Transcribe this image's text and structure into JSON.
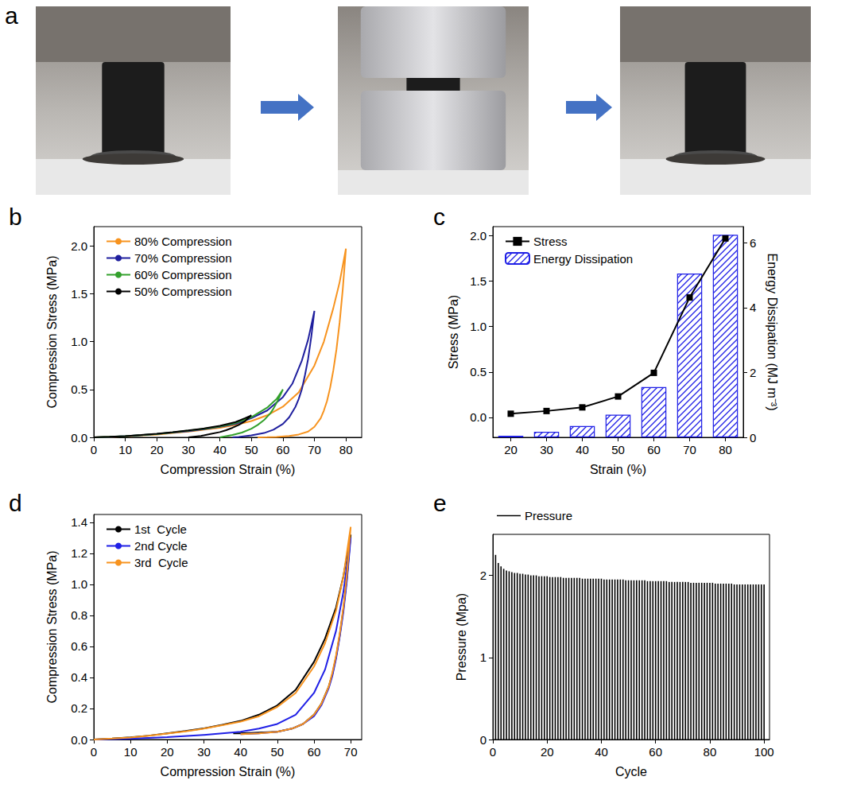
{
  "photo_panel": {
    "title": "a"
  },
  "chart_data": [
    {
      "type": "line",
      "title": "b",
      "xlabel": "Compression Strain (%)",
      "ylabel": "Compression Stress (MPa)",
      "xlim": [
        0,
        85
      ],
      "xticks": [
        0,
        10,
        20,
        30,
        40,
        50,
        60,
        70,
        80
      ],
      "ylim": [
        0,
        2.2
      ],
      "yticks": [
        {
          "value": 0,
          "label": "0.0"
        },
        {
          "value": 0.5,
          "label": "0.5"
        },
        {
          "value": 1,
          "label": "1.0"
        },
        {
          "value": 1.5,
          "label": "1.5"
        },
        {
          "value": 2,
          "label": "2.0"
        }
      ],
      "legend": "upper left",
      "grid": false,
      "series": [
        {
          "name": "80% Compression",
          "color": "#f7931e",
          "marker": "none",
          "x": [
            0,
            5,
            10,
            15,
            20,
            25,
            30,
            35,
            40,
            45,
            50,
            55,
            60,
            65,
            70,
            73,
            76,
            78,
            80,
            79,
            78,
            77,
            76,
            75,
            74,
            73,
            72,
            70,
            68,
            65,
            62,
            58,
            55,
            52
          ],
          "values": [
            0,
            0.005,
            0.01,
            0.02,
            0.03,
            0.045,
            0.06,
            0.08,
            0.1,
            0.13,
            0.17,
            0.23,
            0.32,
            0.47,
            0.75,
            1.0,
            1.35,
            1.62,
            1.97,
            1.55,
            1.2,
            0.92,
            0.7,
            0.52,
            0.38,
            0.28,
            0.2,
            0.11,
            0.06,
            0.03,
            0.015,
            0.005,
            0.002,
            0
          ]
        },
        {
          "name": "70% Compression",
          "color": "#1f1f9e",
          "marker": "none",
          "x": [
            0,
            5,
            10,
            15,
            20,
            25,
            30,
            35,
            40,
            45,
            50,
            55,
            60,
            63,
            66,
            68,
            70,
            69,
            68,
            67,
            66,
            65,
            64,
            62,
            60,
            57,
            54,
            50,
            46,
            44
          ],
          "values": [
            0,
            0.005,
            0.012,
            0.022,
            0.035,
            0.05,
            0.065,
            0.085,
            0.11,
            0.14,
            0.2,
            0.28,
            0.42,
            0.56,
            0.8,
            1.02,
            1.32,
            1.05,
            0.82,
            0.65,
            0.5,
            0.4,
            0.32,
            0.21,
            0.14,
            0.08,
            0.045,
            0.02,
            0.005,
            0
          ]
        },
        {
          "name": "60% Compression",
          "color": "#33a02c",
          "marker": "none",
          "x": [
            0,
            5,
            10,
            15,
            20,
            25,
            30,
            35,
            40,
            45,
            50,
            55,
            58,
            60,
            59,
            58,
            57,
            56,
            54,
            52,
            50,
            47,
            44,
            40
          ],
          "values": [
            0,
            0.006,
            0.013,
            0.023,
            0.036,
            0.052,
            0.07,
            0.09,
            0.115,
            0.15,
            0.21,
            0.31,
            0.4,
            0.5,
            0.43,
            0.36,
            0.3,
            0.25,
            0.18,
            0.13,
            0.09,
            0.05,
            0.025,
            0
          ]
        },
        {
          "name": "50% Compression",
          "color": "#000000",
          "marker": "none",
          "x": [
            0,
            5,
            10,
            15,
            20,
            25,
            30,
            35,
            40,
            45,
            48,
            50,
            49,
            48,
            46,
            44,
            42,
            40,
            37,
            34,
            30
          ],
          "values": [
            0,
            0.006,
            0.013,
            0.024,
            0.037,
            0.054,
            0.072,
            0.093,
            0.12,
            0.16,
            0.2,
            0.23,
            0.2,
            0.17,
            0.13,
            0.1,
            0.075,
            0.055,
            0.035,
            0.015,
            0
          ]
        }
      ]
    },
    {
      "type": "bar",
      "title": "c",
      "xlabel": "Strain (%)",
      "ylabel": "Stress (MPa)",
      "y2label": "Energy Dissipation (MJ m⁻³)",
      "categories": [
        20,
        30,
        40,
        50,
        60,
        70,
        80
      ],
      "ylim": [
        -0.22,
        2.1
      ],
      "yticks": [
        {
          "value": 0,
          "label": "0.0"
        },
        {
          "value": 0.5,
          "label": "0.5"
        },
        {
          "value": 1,
          "label": "1.0"
        },
        {
          "value": 1.5,
          "label": "1.5"
        },
        {
          "value": 2,
          "label": "2.0"
        }
      ],
      "y2lim": [
        0,
        6.5
      ],
      "y2ticks": [
        0,
        2,
        4,
        6
      ],
      "legend": "upper left",
      "grid": false,
      "series": [
        {
          "name": "Stress",
          "type": "line",
          "color": "#000000",
          "marker": "square",
          "values": [
            0.04,
            0.07,
            0.11,
            0.23,
            0.49,
            1.32,
            1.97
          ]
        },
        {
          "name": "Energy Dissipation",
          "type": "bar",
          "color": "#1f1fe6",
          "axis": "y2",
          "values": [
            0.05,
            0.17,
            0.35,
            0.7,
            1.55,
            5.05,
            6.25
          ]
        }
      ]
    },
    {
      "type": "line",
      "title": "d",
      "xlabel": "Compression Strain (%)",
      "ylabel": "Compression Stress (MPa)",
      "xlim": [
        0,
        73
      ],
      "xticks": [
        0,
        10,
        20,
        30,
        40,
        50,
        60,
        70
      ],
      "ylim": [
        0,
        1.45
      ],
      "yticks": [
        {
          "value": 0,
          "label": "0.0"
        },
        {
          "value": 0.2,
          "label": "0.2"
        },
        {
          "value": 0.4,
          "label": "0.4"
        },
        {
          "value": 0.6,
          "label": "0.6"
        },
        {
          "value": 0.8,
          "label": "0.8"
        },
        {
          "value": 1,
          "label": "1.0"
        },
        {
          "value": 1.2,
          "label": "1.2"
        },
        {
          "value": 1.4,
          "label": "1.4"
        }
      ],
      "legend": "upper left",
      "grid": false,
      "series": [
        {
          "name": "1st  Cycle",
          "color": "#000000",
          "marker": "none",
          "x": [
            0,
            5,
            10,
            15,
            20,
            25,
            30,
            35,
            40,
            45,
            50,
            55,
            60,
            63,
            66,
            68,
            70,
            69,
            68,
            67,
            66,
            65,
            64,
            62,
            60,
            57,
            54,
            50,
            45,
            40,
            38
          ],
          "values": [
            0,
            0.006,
            0.014,
            0.025,
            0.04,
            0.055,
            0.072,
            0.095,
            0.12,
            0.16,
            0.22,
            0.32,
            0.5,
            0.65,
            0.85,
            1.05,
            1.32,
            1.05,
            0.84,
            0.67,
            0.53,
            0.42,
            0.34,
            0.23,
            0.16,
            0.1,
            0.07,
            0.05,
            0.045,
            0.04,
            0.04
          ]
        },
        {
          "name": "2nd Cycle",
          "color": "#1f1fe6",
          "marker": "none",
          "x": [
            0,
            10,
            20,
            30,
            40,
            45,
            50,
            55,
            60,
            63,
            66,
            68,
            70,
            69,
            68,
            67,
            66,
            65,
            64,
            62,
            60,
            57,
            54,
            50,
            45,
            40
          ],
          "values": [
            0,
            0.005,
            0.015,
            0.03,
            0.05,
            0.07,
            0.1,
            0.16,
            0.3,
            0.45,
            0.7,
            0.95,
            1.3,
            1.03,
            0.82,
            0.66,
            0.52,
            0.41,
            0.33,
            0.22,
            0.15,
            0.1,
            0.07,
            0.05,
            0.04,
            0.035
          ]
        },
        {
          "name": "3rd  Cycle",
          "color": "#f7931e",
          "marker": "none",
          "x": [
            0,
            5,
            10,
            15,
            20,
            25,
            30,
            35,
            40,
            45,
            50,
            55,
            60,
            63,
            66,
            68,
            70,
            69,
            68,
            67,
            66,
            65,
            64,
            62,
            60,
            57,
            54,
            50,
            45,
            40
          ],
          "values": [
            0,
            0.006,
            0.013,
            0.024,
            0.038,
            0.053,
            0.07,
            0.092,
            0.115,
            0.15,
            0.21,
            0.3,
            0.47,
            0.62,
            0.83,
            1.05,
            1.37,
            1.07,
            0.85,
            0.68,
            0.54,
            0.43,
            0.34,
            0.23,
            0.16,
            0.1,
            0.07,
            0.05,
            0.04,
            0.035
          ]
        }
      ]
    },
    {
      "type": "bar",
      "title": "e",
      "xlabel": "Cycle",
      "ylabel": "Pressure (Mpa)",
      "xlim": [
        0,
        102
      ],
      "xticks": [
        0,
        20,
        40,
        60,
        80,
        100
      ],
      "ylim": [
        0,
        2.5
      ],
      "yticks": [
        0,
        1,
        2
      ],
      "legend": "top",
      "grid": false,
      "series": [
        {
          "name": "Pressure",
          "color": "#000000",
          "x": [
            1,
            2,
            3,
            4,
            5,
            6,
            7,
            8,
            9,
            10,
            11,
            12,
            13,
            14,
            15,
            16,
            17,
            18,
            19,
            20,
            21,
            22,
            23,
            24,
            25,
            26,
            27,
            28,
            29,
            30,
            31,
            32,
            33,
            34,
            35,
            36,
            37,
            38,
            39,
            40,
            41,
            42,
            43,
            44,
            45,
            46,
            47,
            48,
            49,
            50,
            51,
            52,
            53,
            54,
            55,
            56,
            57,
            58,
            59,
            60,
            61,
            62,
            63,
            64,
            65,
            66,
            67,
            68,
            69,
            70,
            71,
            72,
            73,
            74,
            75,
            76,
            77,
            78,
            79,
            80,
            81,
            82,
            83,
            84,
            85,
            86,
            87,
            88,
            89,
            90,
            91,
            92,
            93,
            94,
            95,
            96,
            97,
            98,
            99,
            100
          ],
          "values": [
            2.25,
            2.15,
            2.11,
            2.08,
            2.06,
            2.05,
            2.04,
            2.03,
            2.03,
            2.02,
            2.02,
            2.01,
            2.01,
            2.0,
            2.0,
            2.0,
            1.99,
            1.99,
            1.99,
            1.99,
            1.98,
            1.98,
            1.98,
            1.98,
            1.98,
            1.97,
            1.97,
            1.97,
            1.97,
            1.97,
            1.97,
            1.97,
            1.96,
            1.96,
            1.96,
            1.96,
            1.96,
            1.96,
            1.96,
            1.96,
            1.95,
            1.95,
            1.95,
            1.95,
            1.95,
            1.95,
            1.95,
            1.95,
            1.94,
            1.94,
            1.94,
            1.94,
            1.94,
            1.94,
            1.94,
            1.94,
            1.93,
            1.93,
            1.93,
            1.93,
            1.93,
            1.93,
            1.93,
            1.93,
            1.92,
            1.92,
            1.92,
            1.92,
            1.92,
            1.92,
            1.92,
            1.92,
            1.91,
            1.91,
            1.91,
            1.91,
            1.91,
            1.91,
            1.91,
            1.91,
            1.91,
            1.9,
            1.9,
            1.9,
            1.9,
            1.9,
            1.9,
            1.9,
            1.89,
            1.89,
            1.89,
            1.89,
            1.89,
            1.89,
            1.89,
            1.89,
            1.89,
            1.89,
            1.89,
            1.89
          ]
        }
      ]
    }
  ]
}
